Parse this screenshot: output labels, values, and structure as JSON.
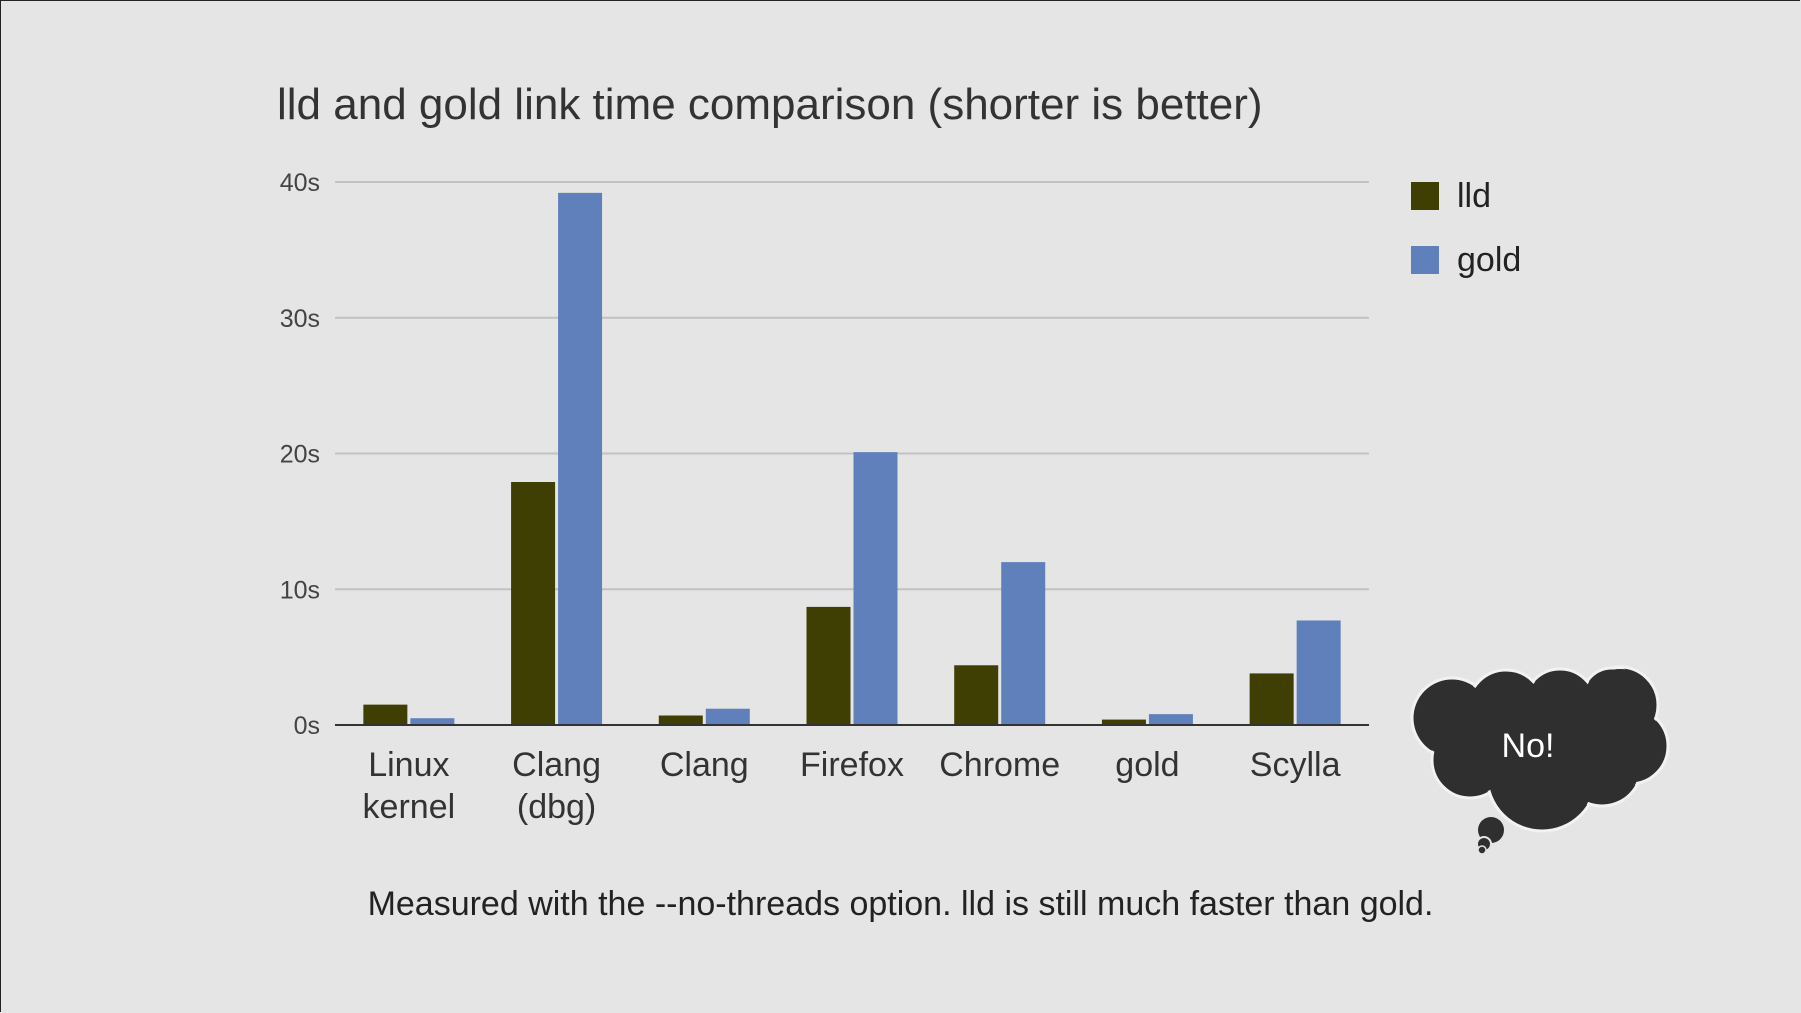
{
  "chart_data": {
    "type": "bar",
    "title": "lld and gold link time comparison (shorter is better)",
    "categories": [
      [
        "Linux",
        "kernel"
      ],
      [
        "Clang",
        "(dbg)"
      ],
      [
        "Clang"
      ],
      [
        "Firefox"
      ],
      [
        "Chrome"
      ],
      [
        "gold"
      ],
      [
        "Scylla"
      ]
    ],
    "series": [
      {
        "name": "lld",
        "color": "#403f03",
        "values": [
          1.5,
          17.9,
          0.7,
          8.7,
          4.4,
          0.4,
          3.8
        ]
      },
      {
        "name": "gold",
        "color": "#5f80bb",
        "values": [
          0.5,
          39.2,
          1.2,
          20.1,
          12.0,
          0.8,
          7.7
        ]
      }
    ],
    "yticks": [
      "0s",
      "10s",
      "20s",
      "30s",
      "40s"
    ],
    "ylim": [
      0,
      40
    ],
    "grid": true,
    "legend_position": "right"
  },
  "caption": "Measured with the --no-threads option. lld is still much faster than gold.",
  "callout": {
    "text": "No!",
    "color": "#2f2f2f"
  }
}
